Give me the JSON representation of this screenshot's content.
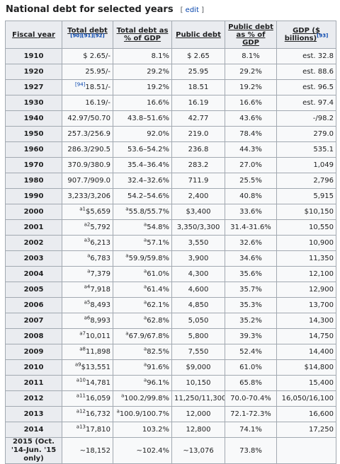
{
  "heading": {
    "title": "National debt for selected years",
    "edit_open": "[",
    "edit_label": "edit",
    "edit_close": "]"
  },
  "columns": [
    {
      "label": "Fiscal year",
      "ref": ""
    },
    {
      "label": "Total debt",
      "ref": "[90][91][92]"
    },
    {
      "label": "Total debt as % of GDP",
      "ref": ""
    },
    {
      "label": "Public debt",
      "ref": ""
    },
    {
      "label": "Public debt as % of GDP",
      "ref": ""
    },
    {
      "label": "GDP ($ billions)",
      "ref": "[93]"
    }
  ],
  "rows": [
    {
      "year": "1910",
      "total_sup": "",
      "total": "$   2.65/-",
      "pct_sup": "",
      "pct": "8.1%",
      "public": "$ 2.65",
      "public_pct": "8.1%",
      "gdp": "est. 32.8"
    },
    {
      "year": "1920",
      "total_sup": "",
      "total": "25.95/-",
      "pct_sup": "",
      "pct": "29.2%",
      "public": "25.95",
      "public_pct": "29.2%",
      "gdp": "est. 88.6"
    },
    {
      "year": "1927",
      "total_sup": "[94]",
      "total": "18.51/-",
      "pct_sup": "",
      "pct": "19.2%",
      "public": "18.51",
      "public_pct": "19.2%",
      "gdp": "est. 96.5"
    },
    {
      "year": "1930",
      "total_sup": "",
      "total": "16.19/-",
      "pct_sup": "",
      "pct": "16.6%",
      "public": "16.19",
      "public_pct": "16.6%",
      "gdp": "est. 97.4"
    },
    {
      "year": "1940",
      "total_sup": "",
      "total": "42.97/50.70",
      "pct_sup": "",
      "pct": "43.8–51.6%",
      "public": "42.77",
      "public_pct": "43.6%",
      "gdp": "-/98.2"
    },
    {
      "year": "1950",
      "total_sup": "",
      "total": "257.3/256.9",
      "pct_sup": "",
      "pct": "92.0%",
      "public": "219.0",
      "public_pct": "78.4%",
      "gdp": "279.0"
    },
    {
      "year": "1960",
      "total_sup": "",
      "total": "286.3/290.5",
      "pct_sup": "",
      "pct": "53.6–54.2%",
      "public": "236.8",
      "public_pct": "44.3%",
      "gdp": "535.1"
    },
    {
      "year": "1970",
      "total_sup": "",
      "total": "370.9/380.9",
      "pct_sup": "",
      "pct": "35.4–36.4%",
      "public": "283.2",
      "public_pct": "27.0%",
      "gdp": "1,049"
    },
    {
      "year": "1980",
      "total_sup": "",
      "total": "907.7/909.0",
      "pct_sup": "",
      "pct": "32.4–32.6%",
      "public": "711.9",
      "public_pct": "25.5%",
      "gdp": "2,796"
    },
    {
      "year": "1990",
      "total_sup": "",
      "total": "3,233/3,206",
      "pct_sup": "",
      "pct": "54.2–54.6%",
      "public": "2,400",
      "public_pct": "40.8%",
      "gdp": "5,915"
    },
    {
      "year": "2000",
      "total_sup": "a1",
      "total": "$5,659",
      "pct_sup": "a",
      "pct": "55.8/55.7%",
      "public": "$3,400",
      "public_pct": "33.6%",
      "gdp": "$10,150"
    },
    {
      "year": "2001",
      "total_sup": "a2",
      "total": "5,792",
      "pct_sup": "a",
      "pct": "54.8%",
      "public": "3,350/3,300",
      "public_pct": "31.4-31.6%",
      "gdp": "10,550"
    },
    {
      "year": "2002",
      "total_sup": "a3",
      "total": "6,213",
      "pct_sup": "a",
      "pct": "57.1%",
      "public": "3,550",
      "public_pct": "32.6%",
      "gdp": "10,900"
    },
    {
      "year": "2003",
      "total_sup": "a",
      "total": "6,783",
      "pct_sup": "a",
      "pct": "59.9/59.8%",
      "public": "3,900",
      "public_pct": "34.6%",
      "gdp": "11,350"
    },
    {
      "year": "2004",
      "total_sup": "a",
      "total": "7,379",
      "pct_sup": "a",
      "pct": "61.0%",
      "public": "4,300",
      "public_pct": "35.6%",
      "gdp": "12,100"
    },
    {
      "year": "2005",
      "total_sup": "a4",
      "total": "7,918",
      "pct_sup": "a",
      "pct": "61.4%",
      "public": "4,600",
      "public_pct": "35.7%",
      "gdp": "12,900"
    },
    {
      "year": "2006",
      "total_sup": "a5",
      "total": "8,493",
      "pct_sup": "a",
      "pct": "62.1%",
      "public": "4,850",
      "public_pct": "35.3%",
      "gdp": "13,700"
    },
    {
      "year": "2007",
      "total_sup": "a6",
      "total": "8,993",
      "pct_sup": "a",
      "pct": "62.8%",
      "public": "5,050",
      "public_pct": "35.2%",
      "gdp": "14,300"
    },
    {
      "year": "2008",
      "total_sup": "a7",
      "total": "10,011",
      "pct_sup": "a",
      "pct": "67.9/67.8%",
      "public": "5,800",
      "public_pct": "39.3%",
      "gdp": "14,750"
    },
    {
      "year": "2009",
      "total_sup": "a8",
      "total": "11,898",
      "pct_sup": "a",
      "pct": "82.5%",
      "public": "7,550",
      "public_pct": "52.4%",
      "gdp": "14,400"
    },
    {
      "year": "2010",
      "total_sup": "a9",
      "total": "$13,551",
      "pct_sup": "a",
      "pct": "91.6%",
      "public": "$9,000",
      "public_pct": "61.0%",
      "gdp": "$14,800"
    },
    {
      "year": "2011",
      "total_sup": "a10",
      "total": "14,781",
      "pct_sup": "a",
      "pct": "96.1%",
      "public": "10,150",
      "public_pct": "65.8%",
      "gdp": "15,400"
    },
    {
      "year": "2012",
      "total_sup": "a11",
      "total": "16,059",
      "pct_sup": "a",
      "pct": "100.2/99.8%",
      "public": "11,250/11,300",
      "public_pct": "70.0-70.4%",
      "gdp": "16,050/16,100"
    },
    {
      "year": "2013",
      "total_sup": "a12",
      "total": "16,732",
      "pct_sup": "a",
      "pct": "100.9/100.7%",
      "public": "12,000",
      "public_pct": "72.1-72.3%",
      "gdp": "16,600"
    },
    {
      "year": "2014",
      "total_sup": "a13",
      "total": "17,810",
      "pct_sup": "",
      "pct": "103.2%",
      "public": "12,800",
      "public_pct": "74.1%",
      "gdp": "17,250"
    },
    {
      "year": "2015 (Oct. '14-Jun. '15 only)",
      "total_sup": "",
      "total": "~18,152",
      "pct_sup": "",
      "pct": "~102.4%",
      "public": "~13,076",
      "public_pct": "73.8%",
      "gdp": ""
    }
  ]
}
